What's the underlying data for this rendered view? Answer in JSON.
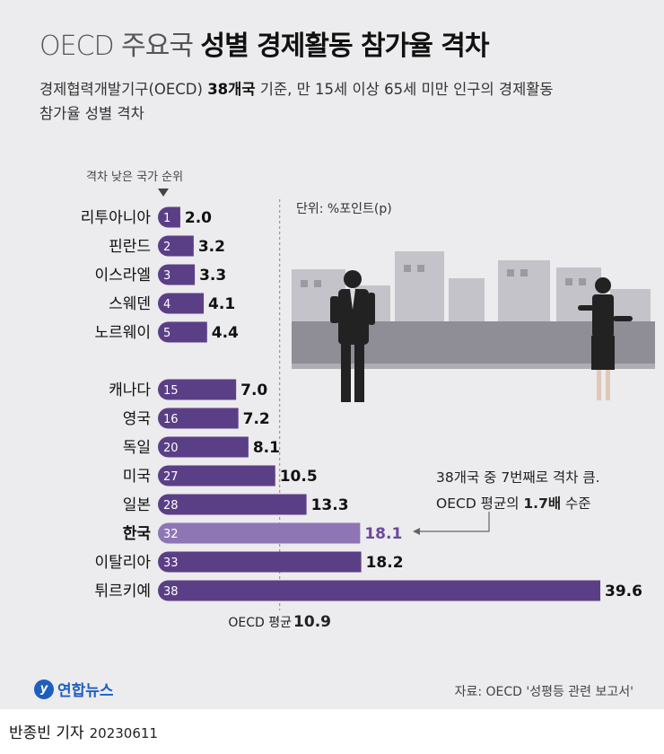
{
  "title": {
    "part1": "OECD 주요국",
    "part2": "성별 경제활동 참가율 격차"
  },
  "subtitle": {
    "line1_a": "경제협력개발기구(OECD) ",
    "line1_b": "38개국",
    "line1_c": " 기준, 만 15세 이상 65세 미만 인구의 경제활동",
    "line2": "참가율 성별 격차"
  },
  "rank_note": "격차 낮은 국가 순위",
  "unit_label": "단위: %포인트(p)",
  "callout": {
    "line1": "38개국 중 7번째로 격차 큼.",
    "line2_a": "OECD 평균의 ",
    "line2_b": "1.7배",
    "line2_c": " 수준"
  },
  "source": "자료: OECD '성평등 관련 보고서'",
  "logo": {
    "mark": "y",
    "text": "연합뉴스"
  },
  "byline": {
    "author": "반종빈 기자",
    "date": "20230611"
  },
  "colors": {
    "bar": "#5b3f86",
    "highlight": "#8e76b5",
    "highlight_text": "#6a4a9c"
  },
  "chart_data": {
    "type": "bar",
    "orientation": "horizontal",
    "categories": [
      "리투아니아",
      "핀란드",
      "이스라엘",
      "스웨덴",
      "노르웨이",
      "캐나다",
      "영국",
      "독일",
      "미국",
      "일본",
      "한국",
      "이탈리아",
      "튀르키예"
    ],
    "ranks": [
      "1",
      "2",
      "3",
      "4",
      "5",
      "15",
      "16",
      "20",
      "27",
      "28",
      "32",
      "33",
      "38"
    ],
    "values": [
      2.0,
      3.2,
      3.3,
      4.1,
      4.4,
      7.0,
      7.2,
      8.1,
      10.5,
      13.3,
      18.1,
      18.2,
      39.6
    ],
    "value_labels": [
      "2.0",
      "3.2",
      "3.3",
      "4.1",
      "4.4",
      "7.0",
      "7.2",
      "8.1",
      "10.5",
      "13.3",
      "18.1",
      "18.2",
      "39.6"
    ],
    "highlight": "한국",
    "reference_line": {
      "label": "OECD 평균",
      "value": 10.9,
      "value_label": "10.9"
    },
    "xlim": [
      0,
      40
    ],
    "grid": false,
    "legend": "none"
  }
}
